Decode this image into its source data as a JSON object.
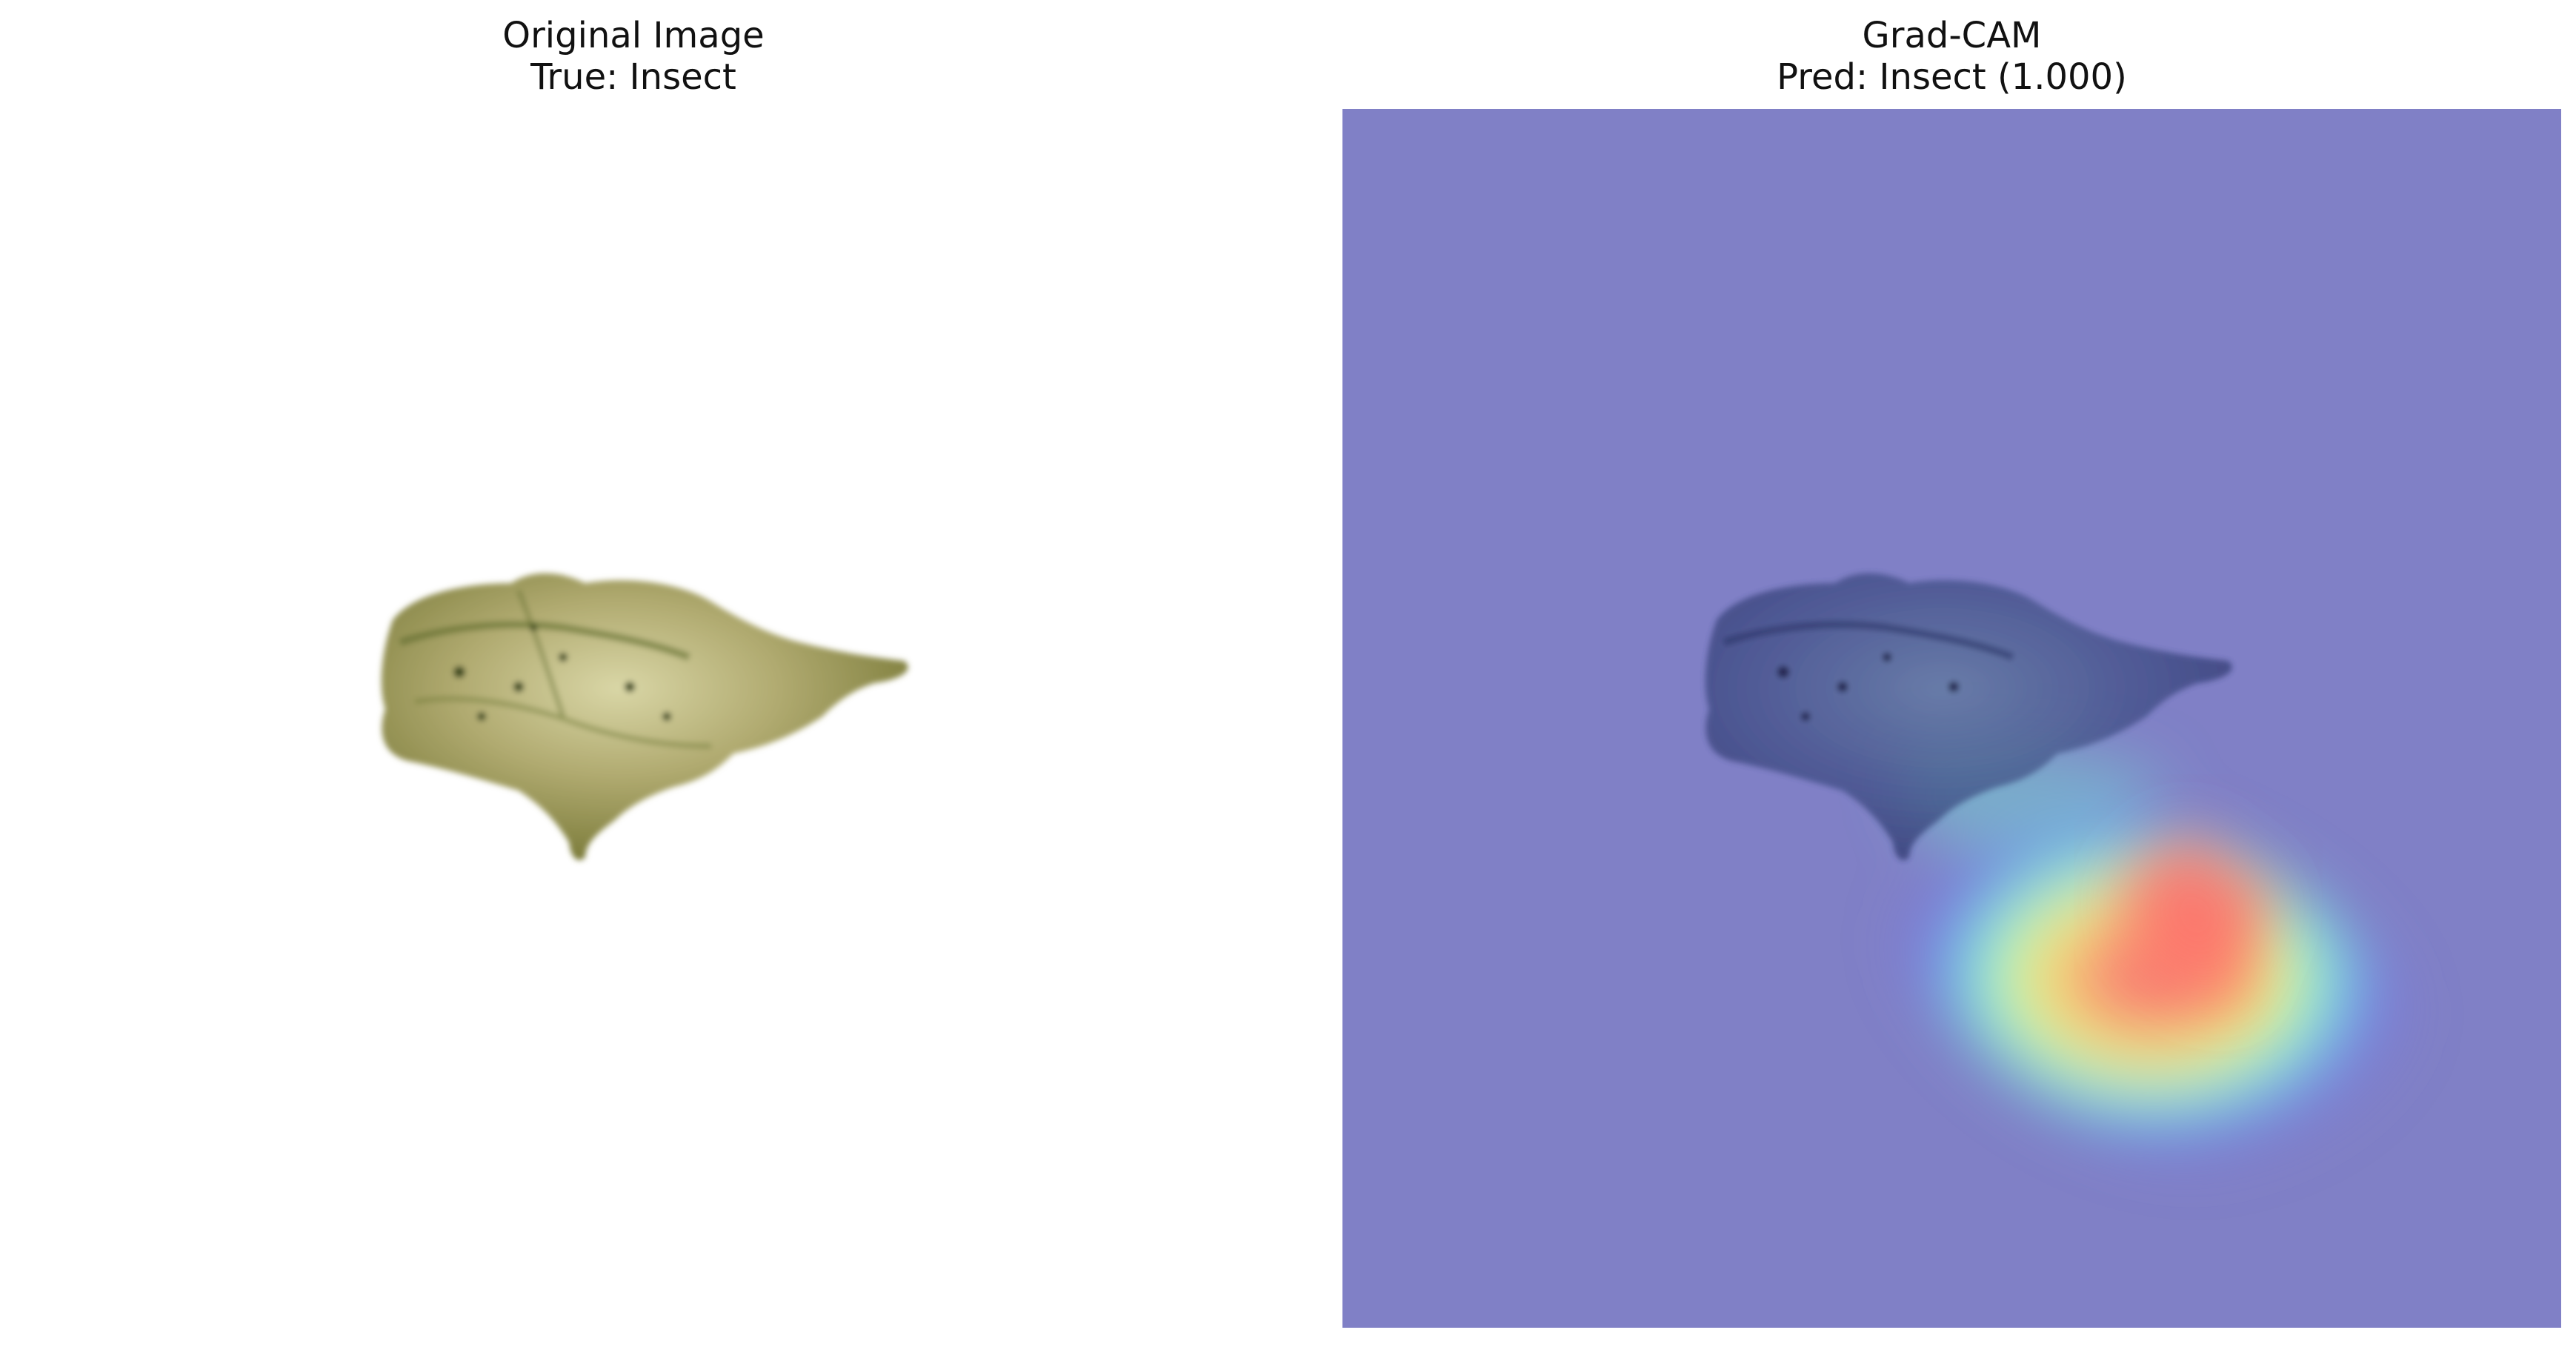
{
  "figure": {
    "left_panel": {
      "title_line1": "Original Image",
      "title_line2": "True: Insect"
    },
    "right_panel": {
      "title_line1": "Grad-CAM",
      "title_line2": "Pred: Insect (1.000)"
    }
  },
  "colors": {
    "background": "#ffffff",
    "overlay_background": "#8080c6",
    "specimen_main": "#a9a46a",
    "specimen_dark": "#5d6a2a",
    "heat_hot": "#ff6a6a",
    "heat_warm": "#ffff70",
    "heat_mid": "#70ffe6",
    "heat_cool": "#7070ff"
  }
}
